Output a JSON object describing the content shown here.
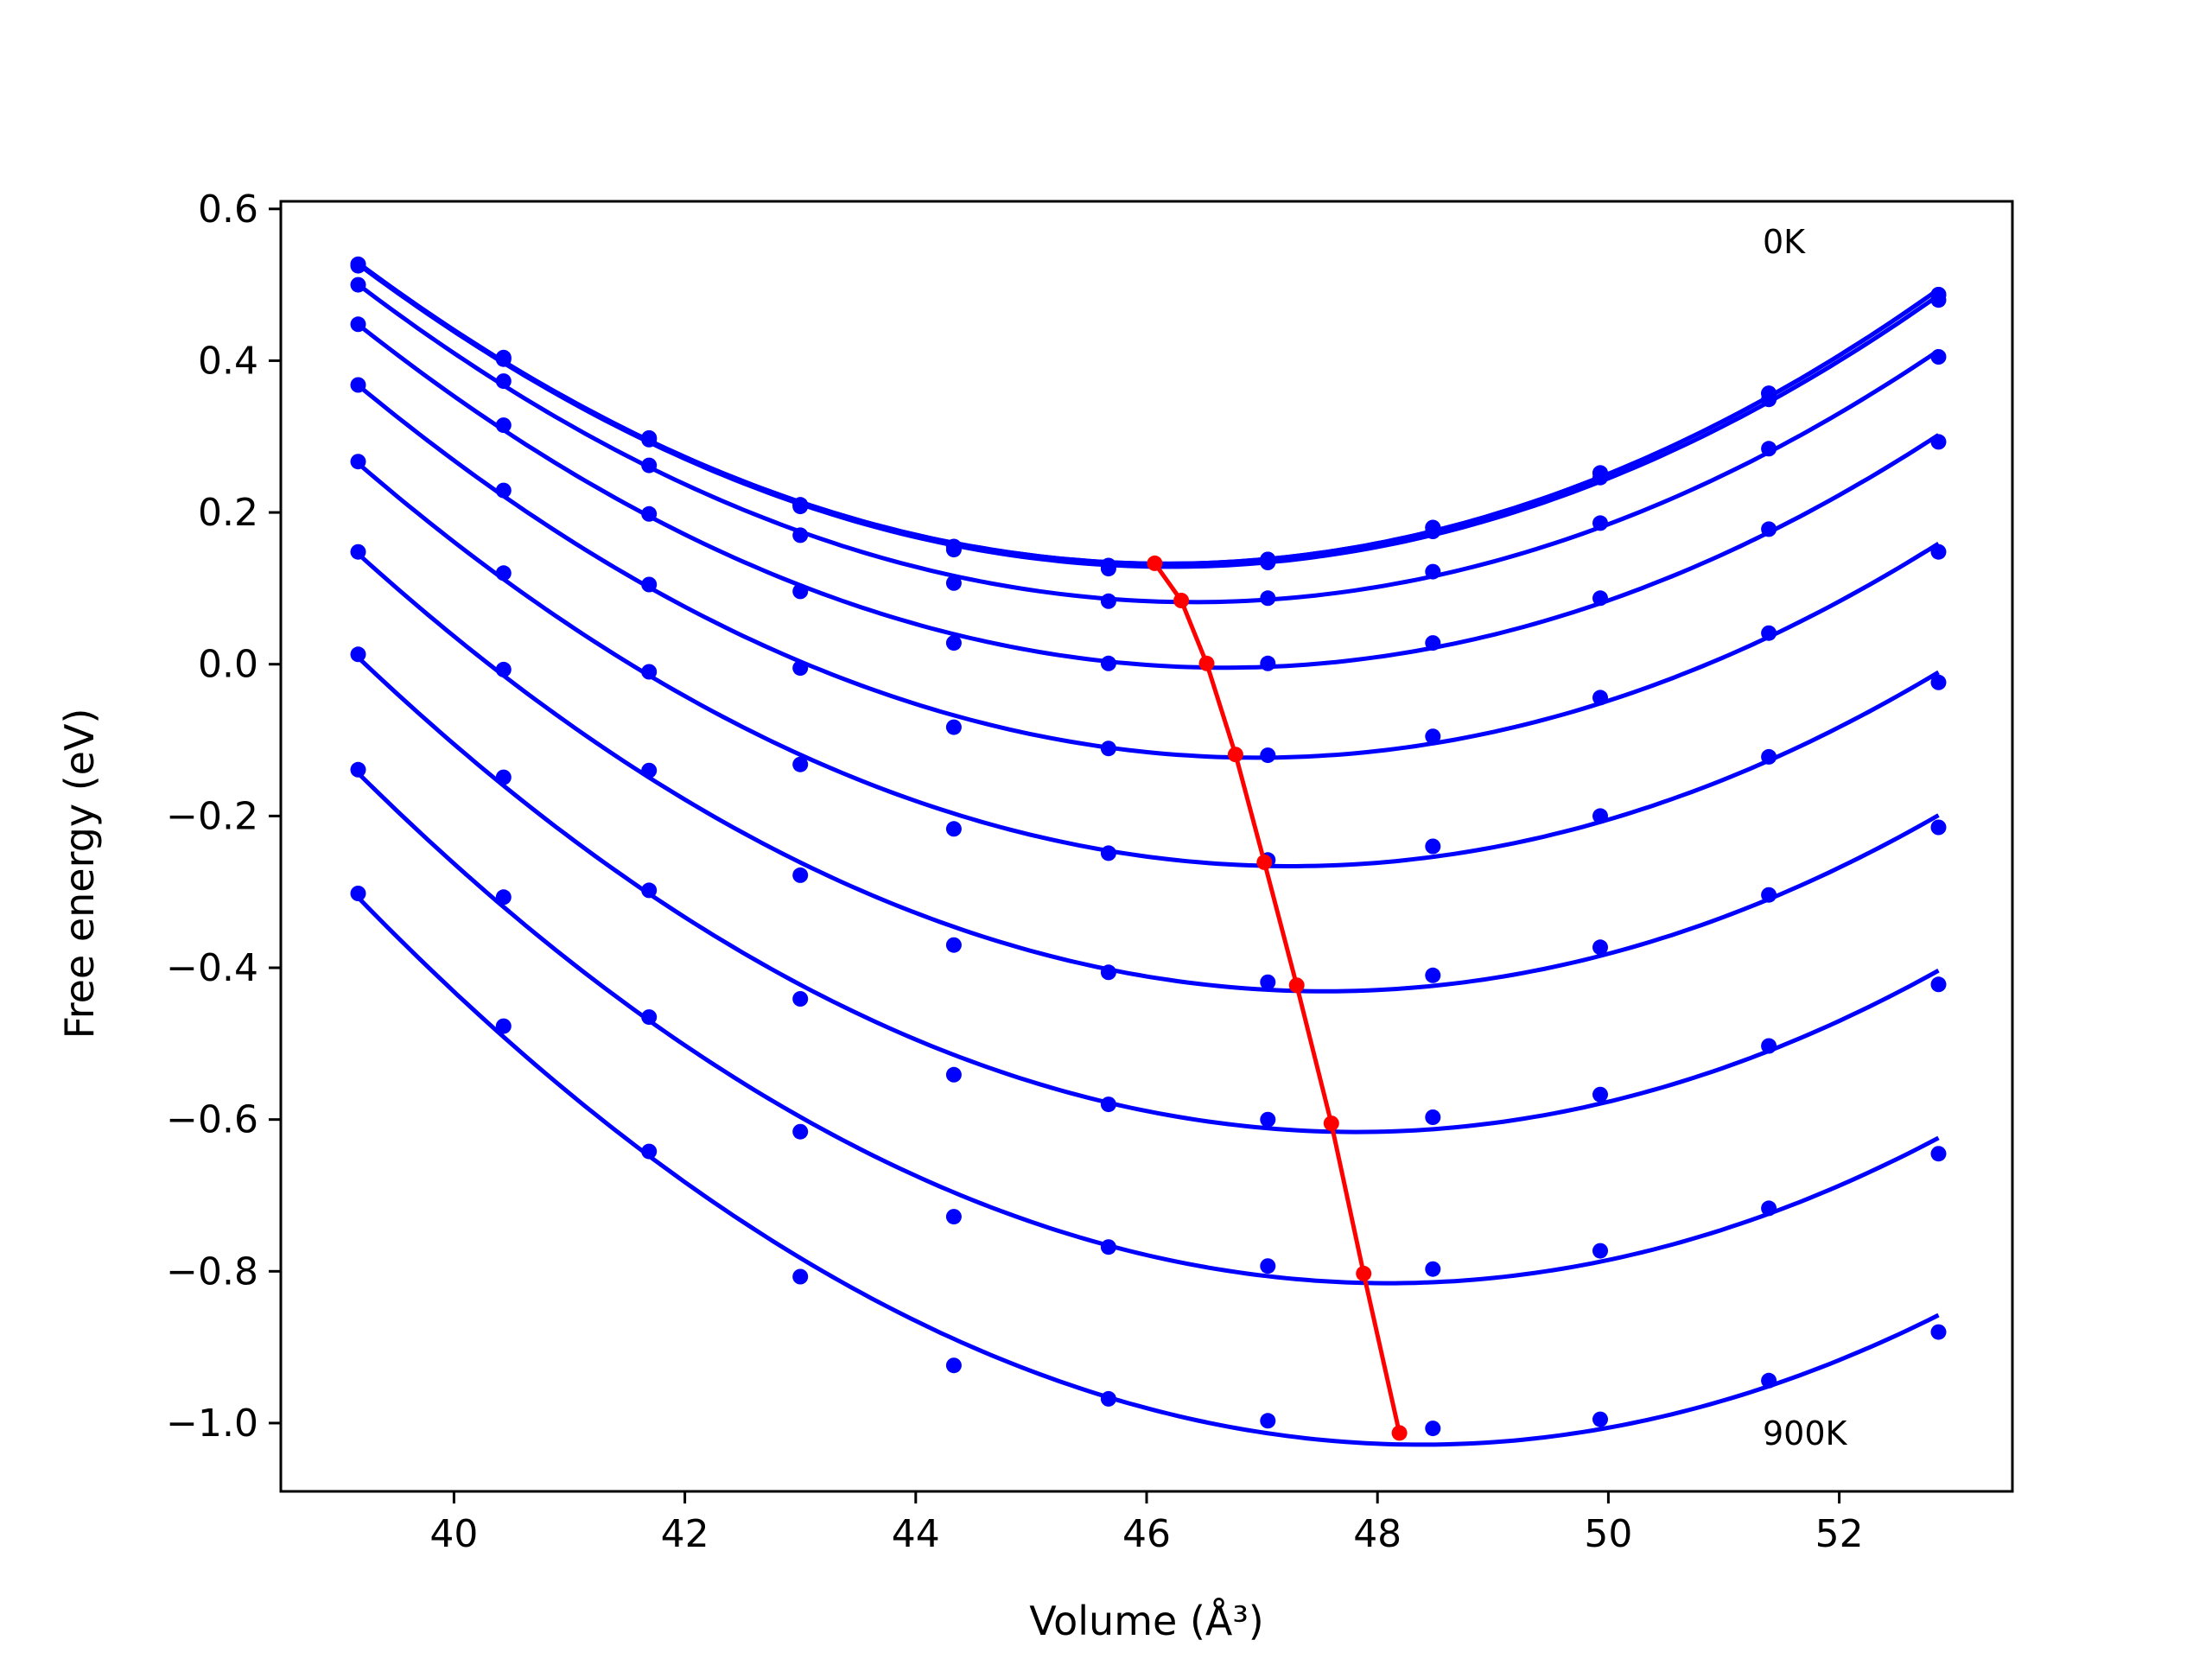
{
  "chart_data": {
    "type": "line",
    "xlabel": "Volume (Å³)",
    "ylabel": "Free energy (eV)",
    "xlim": [
      38.5,
      53.5
    ],
    "ylim": [
      -1.09,
      0.61
    ],
    "xticks": [
      40,
      42,
      44,
      46,
      48,
      50,
      52
    ],
    "yticks": [
      0.6,
      0.4,
      0.2,
      0.0,
      -0.2,
      -0.4,
      -0.6,
      -0.8,
      -1.0
    ],
    "xtick_labels": [
      "40",
      "42",
      "44",
      "46",
      "48",
      "50",
      "52"
    ],
    "ytick_labels": [
      "0.6",
      "0.4",
      "0.2",
      "0.0",
      "−0.2",
      "−0.4",
      "−0.6",
      "−0.8",
      "−1.0"
    ],
    "grid": false,
    "annotations": [
      {
        "text": "0K",
        "x": 51.35,
        "y": 0.55
      },
      {
        "text": "900K",
        "x": 51.35,
        "y": -1.02
      }
    ],
    "x": [
      39.17,
      40.43,
      41.69,
      43.0,
      44.33,
      45.67,
      47.05,
      48.48,
      49.93,
      51.39,
      52.86
    ],
    "series": [
      {
        "curve": "line",
        "color": "#0000ff",
        "values": [
          0.527,
          0.404,
          0.298,
          0.21,
          0.155,
          0.13,
          0.138,
          0.18,
          0.252,
          0.357,
          0.487
        ]
      },
      {
        "curve": "line",
        "color": "#0000ff",
        "values": [
          0.527,
          0.404,
          0.298,
          0.21,
          0.155,
          0.13,
          0.138,
          0.18,
          0.252,
          0.357,
          0.487
        ]
      },
      {
        "curve": "line",
        "color": "#0000ff",
        "values": [
          0.525,
          0.402,
          0.296,
          0.208,
          0.151,
          0.126,
          0.134,
          0.175,
          0.246,
          0.349,
          0.48
        ]
      },
      {
        "curve": "line",
        "color": "#0000ff",
        "values": [
          0.5,
          0.373,
          0.262,
          0.17,
          0.107,
          0.083,
          0.087,
          0.122,
          0.186,
          0.284,
          0.405
        ]
      },
      {
        "curve": "line",
        "color": "#0000ff",
        "values": [
          0.448,
          0.315,
          0.198,
          0.096,
          0.028,
          0.001,
          0.001,
          0.028,
          0.087,
          0.178,
          0.293
        ]
      },
      {
        "curve": "line",
        "color": "#0000ff",
        "values": [
          0.368,
          0.229,
          0.105,
          -0.005,
          -0.083,
          -0.111,
          -0.12,
          -0.095,
          -0.044,
          0.041,
          0.148
        ]
      },
      {
        "curve": "line",
        "color": "#0000ff",
        "values": [
          0.267,
          0.12,
          -0.01,
          -0.132,
          -0.217,
          -0.249,
          -0.258,
          -0.24,
          -0.2,
          -0.122,
          -0.024
        ]
      },
      {
        "curve": "line",
        "color": "#0000ff",
        "values": [
          0.148,
          -0.007,
          -0.14,
          -0.278,
          -0.37,
          -0.406,
          -0.419,
          -0.41,
          -0.373,
          -0.304,
          -0.215
        ]
      },
      {
        "curve": "line",
        "color": "#0000ff",
        "values": [
          0.013,
          -0.149,
          -0.298,
          -0.441,
          -0.541,
          -0.58,
          -0.6,
          -0.597,
          -0.567,
          -0.503,
          -0.422
        ]
      },
      {
        "curve": "line",
        "color": "#0000ff",
        "values": [
          -0.139,
          -0.307,
          -0.465,
          -0.616,
          -0.728,
          -0.768,
          -0.793,
          -0.797,
          -0.773,
          -0.717,
          -0.645
        ]
      },
      {
        "curve": "line",
        "color": "#0000ff",
        "values": [
          -0.302,
          -0.477,
          -0.642,
          -0.807,
          -0.924,
          -0.968,
          -0.997,
          -1.007,
          -0.995,
          -0.944,
          -0.88
        ]
      },
      {
        "curve": "line",
        "color": "#ff0000",
        "x": [
          46.07,
          46.3,
          46.52,
          46.77,
          47.02,
          47.3,
          47.6,
          47.88,
          48.19
        ],
        "values": [
          0.133,
          0.084,
          0.001,
          -0.119,
          -0.261,
          -0.423,
          -0.605,
          -0.803,
          -1.013
        ]
      }
    ]
  }
}
